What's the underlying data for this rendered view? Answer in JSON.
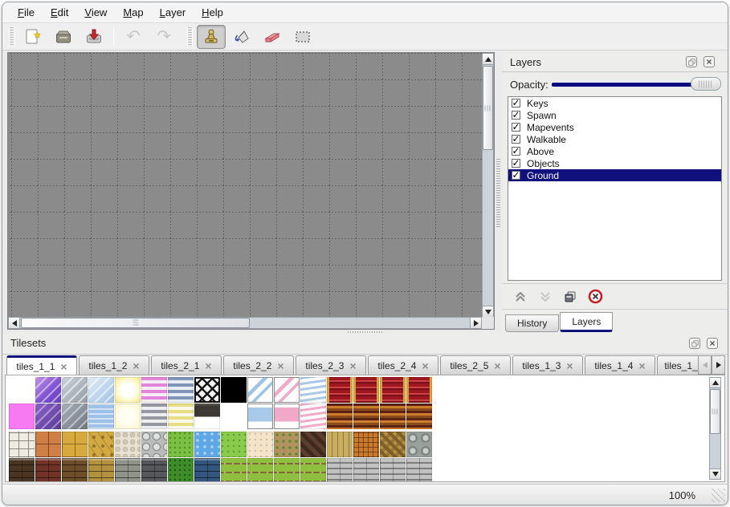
{
  "menu": {
    "items": [
      {
        "label": "File",
        "underline": 0
      },
      {
        "label": "Edit",
        "underline": 0
      },
      {
        "label": "View",
        "underline": 0
      },
      {
        "label": "Map",
        "underline": 0
      },
      {
        "label": "Layer",
        "underline": 0
      },
      {
        "label": "Help",
        "underline": 0
      }
    ]
  },
  "toolbar": {
    "buttons": [
      {
        "name": "new-map",
        "icon": "new-file-icon",
        "state": "normal"
      },
      {
        "name": "open-map",
        "icon": "open-folder-icon",
        "state": "normal"
      },
      {
        "name": "save-map",
        "icon": "save-icon",
        "state": "normal"
      },
      {
        "name": "undo",
        "icon": "undo-arrow-icon",
        "state": "disabled"
      },
      {
        "name": "redo",
        "icon": "redo-arrow-icon",
        "state": "disabled"
      },
      {
        "name": "stamp-tool",
        "icon": "stamp-icon",
        "state": "selected"
      },
      {
        "name": "fill-tool",
        "icon": "paint-bucket-icon",
        "state": "normal"
      },
      {
        "name": "eraser-tool",
        "icon": "eraser-icon",
        "state": "normal"
      },
      {
        "name": "select-tool",
        "icon": "selection-rect-icon",
        "state": "normal"
      }
    ]
  },
  "layers_panel": {
    "title": "Layers",
    "opacity_label": "Opacity:",
    "opacity_value": 1,
    "layers": [
      {
        "name": "Keys",
        "checked": true,
        "selected": false
      },
      {
        "name": "Spawn",
        "checked": true,
        "selected": false
      },
      {
        "name": "Mapevents",
        "checked": true,
        "selected": false
      },
      {
        "name": "Walkable",
        "checked": true,
        "selected": false
      },
      {
        "name": "Above",
        "checked": true,
        "selected": false
      },
      {
        "name": "Objects",
        "checked": true,
        "selected": false
      },
      {
        "name": "Ground",
        "checked": true,
        "selected": true
      }
    ],
    "buttons": [
      {
        "name": "raise-layer",
        "state": "normal"
      },
      {
        "name": "lower-layer",
        "state": "disabled"
      },
      {
        "name": "duplicate-layer",
        "state": "normal"
      },
      {
        "name": "delete-layer",
        "state": "normal"
      }
    ],
    "tabs": [
      {
        "label": "History",
        "active": false
      },
      {
        "label": "Layers",
        "active": true
      }
    ]
  },
  "tilesets_panel": {
    "title": "Tilesets",
    "tabs": [
      {
        "label": "tiles_1_1",
        "active": true,
        "truncated": false
      },
      {
        "label": "tiles_1_2",
        "active": false,
        "truncated": false
      },
      {
        "label": "tiles_2_1",
        "active": false,
        "truncated": false
      },
      {
        "label": "tiles_2_2",
        "active": false,
        "truncated": false
      },
      {
        "label": "tiles_2_3",
        "active": false,
        "truncated": false
      },
      {
        "label": "tiles_2_4",
        "active": false,
        "truncated": false
      },
      {
        "label": "tiles_2_5",
        "active": false,
        "truncated": false
      },
      {
        "label": "tiles_1_3",
        "active": false,
        "truncated": false
      },
      {
        "label": "tiles_1_4",
        "active": false,
        "truncated": false
      },
      {
        "label": "tiles_1_",
        "active": false,
        "truncated": true
      }
    ],
    "tile_rows": [
      [
        "empty",
        "glass-purple",
        "glass-gray",
        "glass-blue",
        "glow-yellow",
        "stripes-pink",
        "stripes-blue",
        "lattice",
        "black",
        "pane-blue",
        "pane-pink",
        "wave-blue",
        "curtain-red",
        "curtain-red",
        "curtain-red",
        "curtain-red"
      ],
      [
        "magenta",
        "glass-purple-dark",
        "glass-gray-dark",
        "water-anim",
        "glow-pale",
        "stripes-gray",
        "stripes-yellow",
        "sign",
        "empty",
        "pane-blue2",
        "pane-pink2",
        "wave-pink",
        "curtain-orange",
        "curtain-orange",
        "curtain-orange",
        "curtain-orange"
      ],
      [
        "stone-path",
        "tiles-orange",
        "tiles-gold",
        "stone-gold",
        "pebbles",
        "stones-gray",
        "grass",
        "water",
        "grass2",
        "sand",
        "dirt-plants",
        "wood-dark",
        "wood-planks",
        "basket",
        "herringbone",
        "logs"
      ],
      [
        "brick-darkbrown",
        "brick-red",
        "brick-brown",
        "brick-tan",
        "blocks-gray",
        "brick-darkgray",
        "grass-dark",
        "brick-blue",
        "field",
        "field",
        "field",
        "field",
        "planks-gray",
        "planks-gray",
        "planks-gray",
        "planks-gray"
      ]
    ]
  },
  "status_bar": {
    "zoom": "100%"
  },
  "colors": {
    "accent": "#10107e",
    "canvas_gray": "#8b8b8b"
  }
}
